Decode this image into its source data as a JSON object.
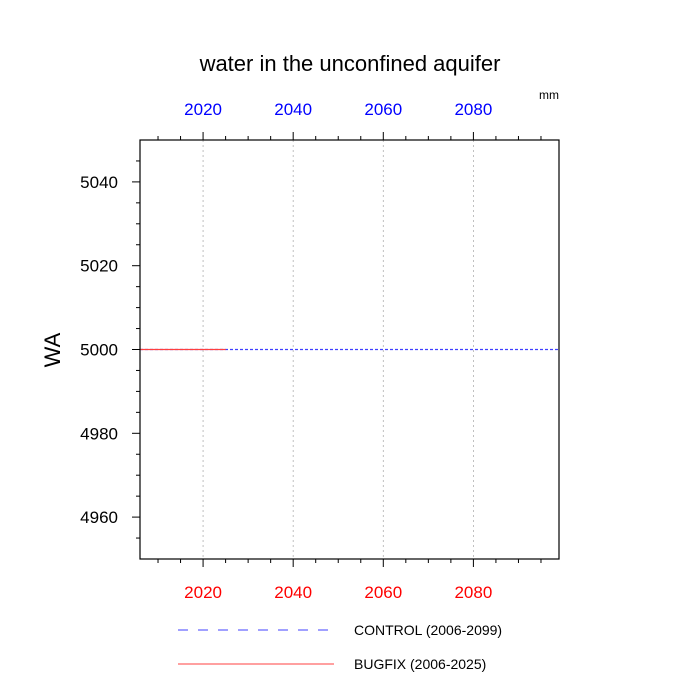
{
  "chart_data": {
    "type": "line",
    "title": "water in the unconfined aquifer",
    "units_label": "mm",
    "xlabel": "",
    "ylabel": "WA",
    "xlim": [
      2006,
      2099
    ],
    "ylim": [
      4950,
      5050
    ],
    "x_ticks": [
      "2020",
      "2040",
      "2060",
      "2080"
    ],
    "y_ticks": [
      "4960",
      "4980",
      "5000",
      "5020",
      "5040"
    ],
    "grid": "vertical-dotted",
    "top_axis_color": "#0000ff",
    "bottom_axis_color": "#ff0000",
    "series": [
      {
        "name": "CONTROL (2006-2099)",
        "color": "#4040ff",
        "style": "dashed",
        "x": [
          2006,
          2099
        ],
        "y": [
          5000,
          5000
        ]
      },
      {
        "name": "BUGFIX (2006-2025)",
        "color": "#ff4040",
        "style": "solid",
        "x": [
          2006,
          2025
        ],
        "y": [
          5000,
          5000
        ]
      }
    ],
    "legend": "bottom"
  }
}
